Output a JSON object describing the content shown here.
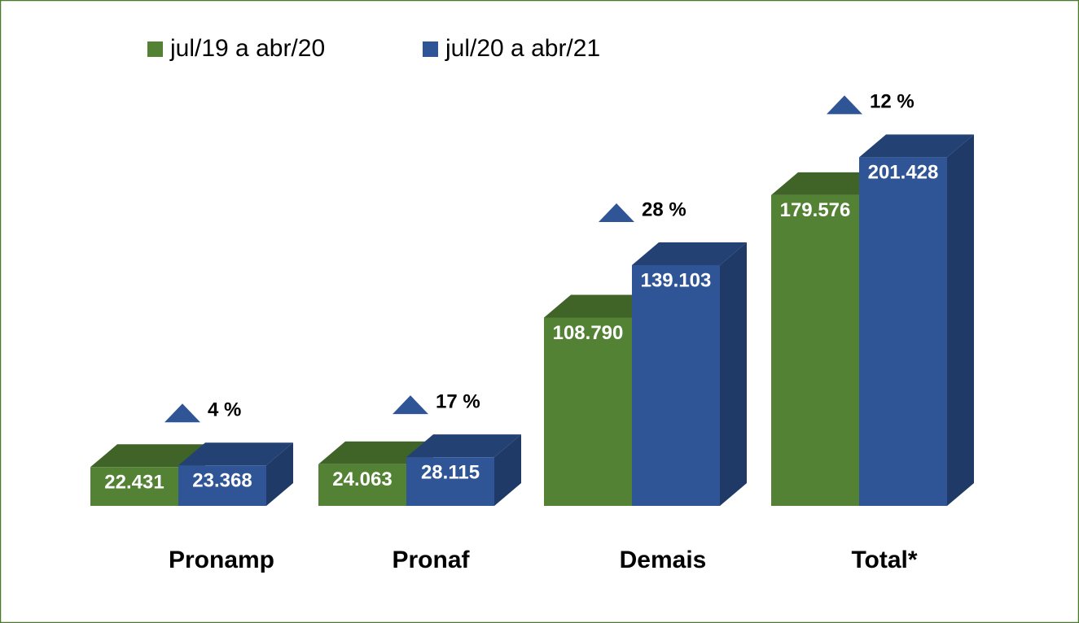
{
  "chart_data": {
    "type": "bar",
    "categories": [
      "Pronamp",
      "Pronaf",
      "Demais",
      "Total*"
    ],
    "series": [
      {
        "name": "jul/19 a abr/20",
        "color": "#548235",
        "values": [
          22431,
          24063,
          108790,
          179576
        ],
        "value_labels": [
          "22.431",
          "24.063",
          "108.790",
          "179.576"
        ]
      },
      {
        "name": "jul/20 a abr/21",
        "color": "#2f5597",
        "values": [
          23368,
          28115,
          139103,
          201428
        ],
        "value_labels": [
          "23.368",
          "28.115",
          "139.103",
          "201.428"
        ]
      }
    ],
    "annotations": [
      "4 %",
      "17 %",
      "28 %",
      "12 %"
    ],
    "legend": "top-left"
  }
}
